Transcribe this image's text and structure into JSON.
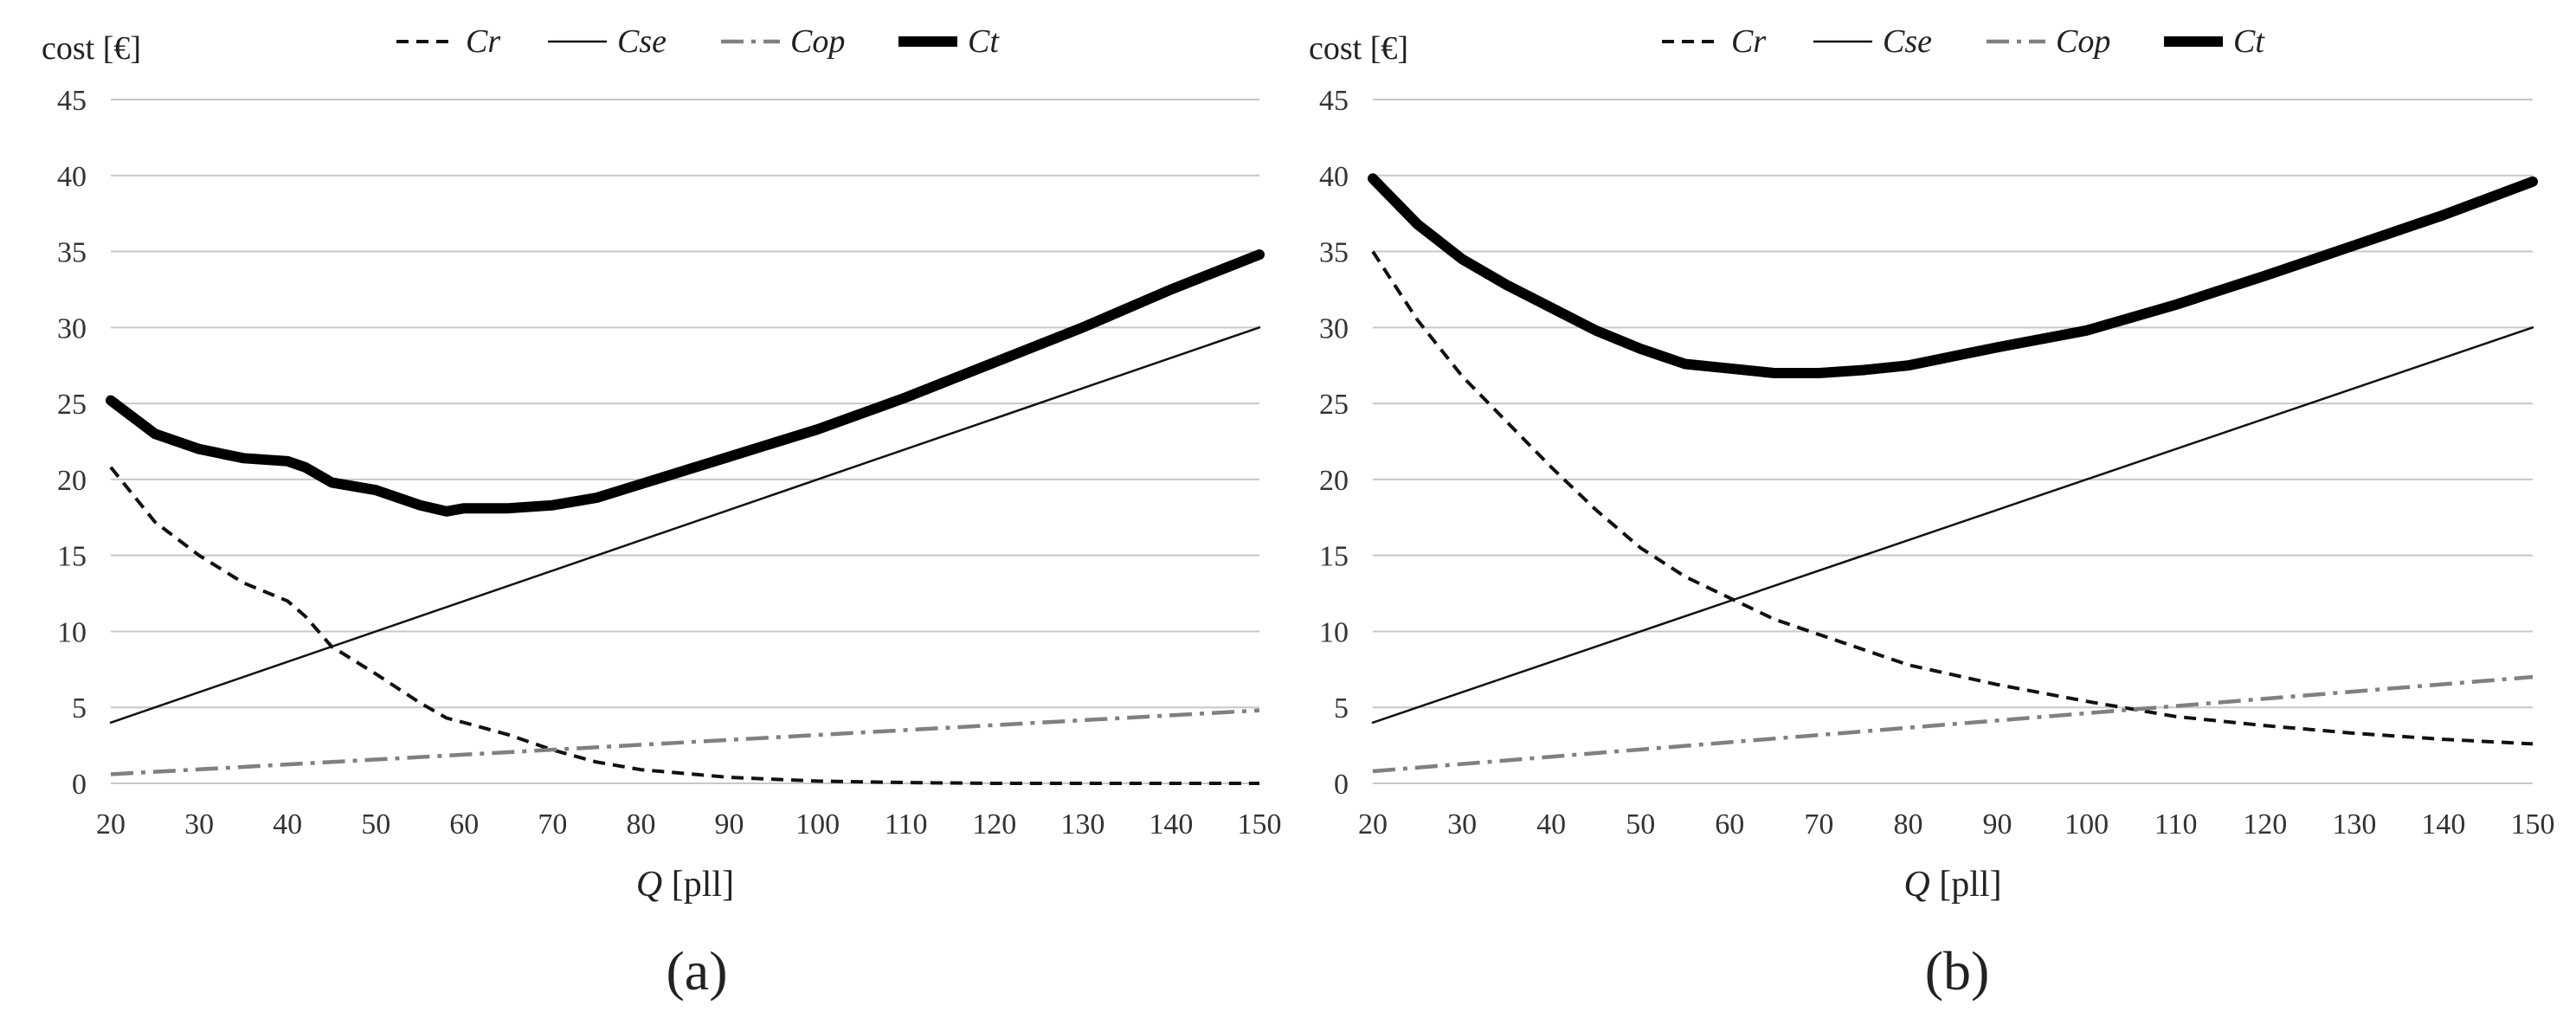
{
  "chart_data": [
    {
      "type": "line",
      "panel_label": "(a)",
      "ylabel": "cost [€]",
      "xlabel_var": "Q",
      "xlabel_unit": " [pll]",
      "xlim": [
        20,
        150
      ],
      "ylim": [
        0,
        45
      ],
      "xticks": [
        "20",
        "30",
        "40",
        "50",
        "60",
        "70",
        "80",
        "90",
        "100",
        "110",
        "120",
        "130",
        "140",
        "150"
      ],
      "yticks": [
        "0",
        "5",
        "10",
        "15",
        "20",
        "25",
        "30",
        "35",
        "40",
        "45"
      ],
      "grid": true,
      "legend_position": "top",
      "series": [
        {
          "name": "Cr",
          "style": "dashed",
          "x": [
            20,
            25,
            30,
            35,
            40,
            42,
            45,
            50,
            55,
            58,
            60,
            65,
            70,
            75,
            80,
            90,
            100,
            110,
            120,
            130,
            140,
            150
          ],
          "y": [
            20.8,
            17.2,
            15.0,
            13.2,
            12.0,
            11.0,
            9.0,
            7.2,
            5.3,
            4.3,
            4.0,
            3.2,
            2.2,
            1.4,
            0.9,
            0.4,
            0.15,
            0.05,
            0.0,
            0.0,
            0.0,
            0.0
          ]
        },
        {
          "name": "Cse",
          "style": "solid-thin",
          "x": [
            20,
            150
          ],
          "y": [
            4.0,
            30.0
          ]
        },
        {
          "name": "Cop",
          "style": "dashdot",
          "x": [
            20,
            150
          ],
          "y": [
            0.6,
            4.8
          ]
        },
        {
          "name": "Ct",
          "style": "solid-thick",
          "x": [
            20,
            25,
            30,
            35,
            40,
            42,
            45,
            50,
            55,
            58,
            60,
            65,
            70,
            75,
            80,
            90,
            100,
            110,
            120,
            130,
            140,
            150
          ],
          "y": [
            25.2,
            23.0,
            22.0,
            21.4,
            21.2,
            20.8,
            19.8,
            19.3,
            18.3,
            17.9,
            18.1,
            18.1,
            18.3,
            18.8,
            19.7,
            21.5,
            23.3,
            25.4,
            27.7,
            30.0,
            32.5,
            34.8
          ]
        }
      ]
    },
    {
      "type": "line",
      "panel_label": "(b)",
      "ylabel": "cost [€]",
      "xlabel_var": "Q",
      "xlabel_unit": " [pll]",
      "xlim": [
        20,
        150
      ],
      "ylim": [
        0,
        45
      ],
      "xticks": [
        "20",
        "30",
        "40",
        "50",
        "60",
        "70",
        "80",
        "90",
        "100",
        "110",
        "120",
        "130",
        "140",
        "150"
      ],
      "yticks": [
        "0",
        "5",
        "10",
        "15",
        "20",
        "25",
        "30",
        "35",
        "40",
        "45"
      ],
      "grid": true,
      "legend_position": "top",
      "series": [
        {
          "name": "Cr",
          "style": "dashed",
          "x": [
            20,
            25,
            30,
            35,
            40,
            45,
            50,
            55,
            60,
            65,
            70,
            75,
            80,
            90,
            100,
            110,
            120,
            130,
            140,
            150
          ],
          "y": [
            35.0,
            30.5,
            26.8,
            23.8,
            20.8,
            18.0,
            15.5,
            13.6,
            12.2,
            10.8,
            9.8,
            8.8,
            7.8,
            6.5,
            5.4,
            4.4,
            3.8,
            3.3,
            2.9,
            2.6
          ]
        },
        {
          "name": "Cse",
          "style": "solid-thin",
          "x": [
            20,
            150
          ],
          "y": [
            4.0,
            30.0
          ]
        },
        {
          "name": "Cop",
          "style": "dashdot",
          "x": [
            20,
            150
          ],
          "y": [
            0.8,
            7.0
          ]
        },
        {
          "name": "Ct",
          "style": "solid-thick",
          "x": [
            20,
            25,
            30,
            35,
            40,
            45,
            50,
            55,
            60,
            65,
            70,
            75,
            80,
            90,
            100,
            110,
            120,
            130,
            140,
            150
          ],
          "y": [
            39.8,
            36.8,
            34.5,
            32.8,
            31.3,
            29.8,
            28.6,
            27.6,
            27.3,
            27.0,
            27.0,
            27.2,
            27.5,
            28.7,
            29.8,
            31.5,
            33.4,
            35.4,
            37.4,
            39.6
          ]
        }
      ]
    }
  ]
}
